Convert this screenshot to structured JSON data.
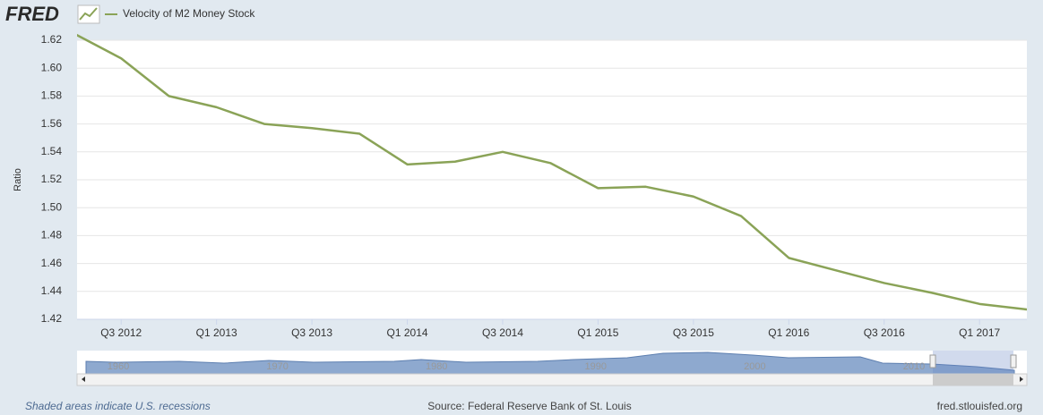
{
  "logo": "FRED",
  "chart_data": {
    "type": "line",
    "y_label": "Ratio",
    "categories": [
      null,
      "Q3 2012",
      null,
      "Q1 2013",
      null,
      "Q3 2013",
      null,
      "Q1 2014",
      null,
      "Q3 2014",
      null,
      "Q1 2015",
      null,
      "Q3 2015",
      null,
      "Q1 2016",
      null,
      "Q3 2016",
      null,
      "Q1 2017",
      null
    ],
    "series": [
      {
        "name": "Velocity of M2 Money Stock",
        "color": "#8aa357",
        "values": [
          1.625,
          1.607,
          1.58,
          1.572,
          1.56,
          1.557,
          1.553,
          1.531,
          1.533,
          1.54,
          1.532,
          1.514,
          1.515,
          1.508,
          1.494,
          1.464,
          1.455,
          1.446,
          1.439,
          1.431,
          1.427
        ]
      }
    ],
    "ylim": [
      1.42,
      1.62
    ],
    "yticks": [
      1.42,
      1.44,
      1.46,
      1.48,
      {
        "value": 1.5,
        "label": "1.50"
      },
      1.52,
      1.54,
      1.56,
      1.58,
      {
        "value": 1.6,
        "label": "1.60"
      },
      1.62
    ],
    "grid": true
  },
  "navigator": {
    "labels": [
      "1960",
      "1970",
      "1980",
      "1990",
      "2000",
      "2010"
    ]
  },
  "footer": {
    "note": "Shaded areas indicate U.S. recessions",
    "source": "Source: Federal Reserve Bank of St. Louis",
    "site": "fred.stlouisfed.org"
  }
}
